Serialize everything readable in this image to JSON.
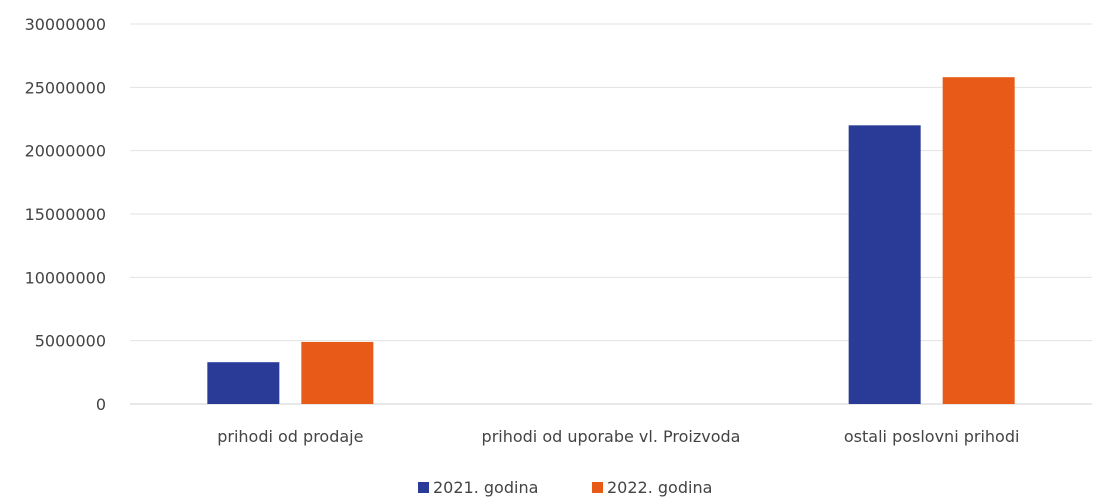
{
  "chart_data": {
    "type": "bar",
    "categories": [
      "prihodi od prodaje",
      "prihodi od uporabe vl. Proizvoda",
      "ostali poslovni prihodi"
    ],
    "series": [
      {
        "name": "2021. godina",
        "color": "#2a3a97",
        "values": [
          3300000,
          0,
          22000000
        ]
      },
      {
        "name": "2022. godina",
        "color": "#e85a17",
        "values": [
          4900000,
          0,
          25800000
        ]
      }
    ],
    "ylim": [
      0,
      30000000
    ],
    "yticks": [
      "0",
      "5000000",
      "10000000",
      "15000000",
      "20000000",
      "25000000",
      "30000000"
    ],
    "grid": true,
    "legend_position": "bottom"
  }
}
